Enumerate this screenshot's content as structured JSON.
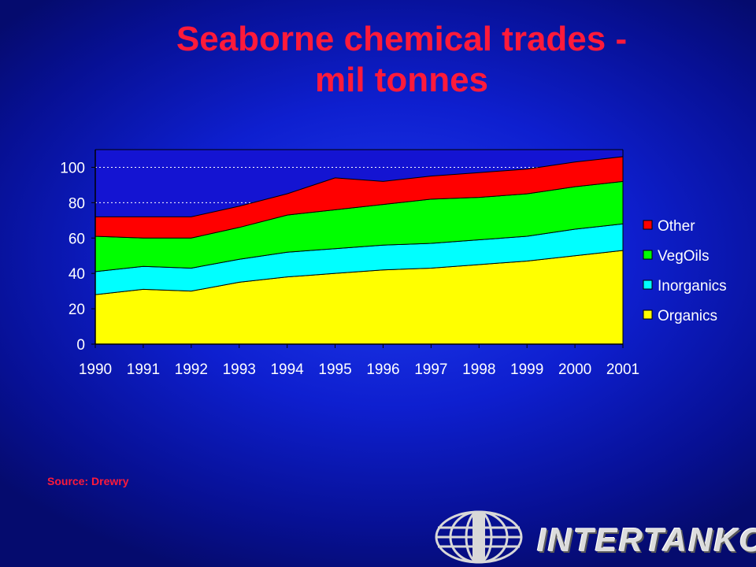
{
  "slide": {
    "title_line1": "Seaborne chemical trades -",
    "title_line2": "mil tonnes",
    "source": "Source: Drewry"
  },
  "logo": {
    "text": "INTERTANKO",
    "icon": "globe-icon"
  },
  "colors": {
    "title": "#ff1a3a",
    "background": "#0e1fcf",
    "Other": "#ff0000",
    "VegOils": "#00ff00",
    "Inorganics": "#00ffff",
    "Organics": "#ffff00"
  },
  "chart_data": {
    "type": "area",
    "stacked": true,
    "categories": [
      "1990",
      "1991",
      "1992",
      "1993",
      "1994",
      "1995",
      "1996",
      "1997",
      "1998",
      "1999",
      "2000",
      "2001"
    ],
    "series": [
      {
        "name": "Organics",
        "values": [
          28,
          31,
          30,
          35,
          38,
          40,
          42,
          43,
          45,
          47,
          50,
          53
        ]
      },
      {
        "name": "Inorganics",
        "values": [
          13,
          13,
          13,
          13,
          14,
          14,
          14,
          14,
          14,
          14,
          15,
          15
        ]
      },
      {
        "name": "VegOils",
        "values": [
          20,
          16,
          17,
          18,
          21,
          22,
          23,
          25,
          24,
          24,
          24,
          24
        ]
      },
      {
        "name": "Other",
        "values": [
          11,
          12,
          12,
          12,
          12,
          18,
          13,
          13,
          14,
          14,
          14,
          14
        ]
      }
    ],
    "legend_order": [
      "Other",
      "VegOils",
      "Inorganics",
      "Organics"
    ],
    "ylim": [
      0,
      110
    ],
    "yticks": [
      0,
      20,
      40,
      60,
      80,
      100
    ],
    "gridlines": [
      80,
      100
    ],
    "legend_position": "right"
  }
}
